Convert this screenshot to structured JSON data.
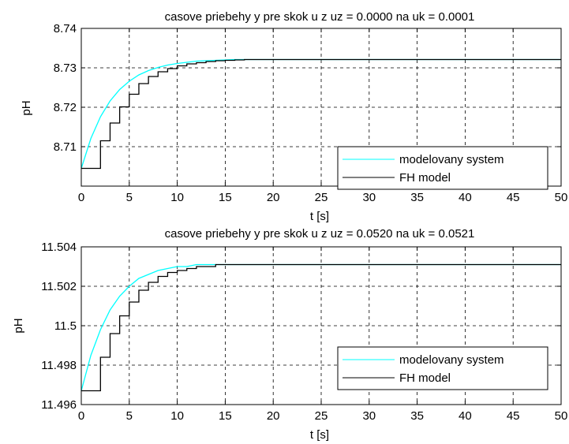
{
  "chart_data": [
    {
      "type": "line",
      "title": "casove priebehy y pre skok u z uz = 0.0000 na uk = 0.0001",
      "xlabel": "t [s]",
      "ylabel": "pH",
      "xlim": [
        0,
        50
      ],
      "ylim": [
        8.7,
        8.74
      ],
      "xticks": [
        0,
        5,
        10,
        15,
        20,
        25,
        30,
        35,
        40,
        45,
        50
      ],
      "xtick_labels": [
        "0",
        "5",
        "10",
        "15",
        "20",
        "25",
        "30",
        "35",
        "40",
        "45",
        "50"
      ],
      "yticks": [
        8.71,
        8.72,
        8.73,
        8.74
      ],
      "ytick_labels": [
        "8.71",
        "8.72",
        "8.73",
        "8.74"
      ],
      "grid": true,
      "legend_position": "bottom-right",
      "series": [
        {
          "name": "modelovany system",
          "color": "#00ffff",
          "style": "line",
          "x": [
            0,
            1,
            2,
            3,
            4,
            5,
            6,
            7,
            8,
            9,
            10,
            11,
            12,
            13,
            14,
            15,
            16,
            18,
            20,
            22,
            25,
            30,
            35,
            40,
            45,
            50
          ],
          "y": [
            8.7045,
            8.7121,
            8.7176,
            8.7216,
            8.7245,
            8.7266,
            8.7282,
            8.7293,
            8.7301,
            8.7307,
            8.7311,
            8.7314,
            8.7317,
            8.7318,
            8.7319,
            8.732,
            8.7321,
            8.7321,
            8.7321,
            8.7321,
            8.7321,
            8.7321,
            8.7321,
            8.7321,
            8.7321,
            8.7321
          ]
        },
        {
          "name": "FH model",
          "color": "#000000",
          "style": "step",
          "x": [
            0,
            2,
            3,
            4,
            5,
            6,
            7,
            8,
            9,
            10,
            11,
            12,
            13,
            14,
            15,
            16,
            17,
            18,
            22,
            50
          ],
          "y": [
            8.7045,
            8.7115,
            8.716,
            8.7201,
            8.7233,
            8.726,
            8.7278,
            8.729,
            8.7298,
            8.7305,
            8.731,
            8.7313,
            8.7316,
            8.7318,
            8.7319,
            8.732,
            8.7321,
            8.7321,
            8.7321,
            8.7321
          ]
        }
      ]
    },
    {
      "type": "line",
      "title": "casove priebehy y pre skok u z uz = 0.0520 na uk = 0.0521",
      "xlabel": "t [s]",
      "ylabel": "pH",
      "xlim": [
        0,
        50
      ],
      "ylim": [
        11.496,
        11.504
      ],
      "xticks": [
        0,
        5,
        10,
        15,
        20,
        25,
        30,
        35,
        40,
        45,
        50
      ],
      "xtick_labels": [
        "0",
        "5",
        "10",
        "15",
        "20",
        "25",
        "30",
        "35",
        "40",
        "45",
        "50"
      ],
      "yticks": [
        11.496,
        11.498,
        11.5,
        11.502,
        11.504
      ],
      "ytick_labels": [
        "11.496",
        "11.498",
        "11.5",
        "11.502",
        "11.504"
      ],
      "grid": true,
      "legend_position": "bottom-right",
      "series": [
        {
          "name": "modelovany system",
          "color": "#00ffff",
          "style": "line",
          "x": [
            0,
            1,
            2,
            3,
            4,
            5,
            6,
            7,
            8,
            9,
            10,
            11,
            12,
            13,
            14,
            15,
            16,
            18,
            20,
            23,
            25,
            30,
            35,
            40,
            45,
            50
          ],
          "y": [
            11.4967,
            11.4985,
            11.4998,
            11.5008,
            11.5015,
            11.502,
            11.5024,
            11.5026,
            11.5028,
            11.5029,
            11.503,
            11.503,
            11.5031,
            11.5031,
            11.5031,
            11.5031,
            11.5031,
            11.5031,
            11.5031,
            11.5031,
            11.5031,
            11.5031,
            11.5031,
            11.5031,
            11.5031,
            11.5031
          ]
        },
        {
          "name": "FH model",
          "color": "#000000",
          "style": "step",
          "x": [
            0,
            2,
            3,
            4,
            5,
            6,
            7,
            8,
            9,
            10,
            11,
            12,
            13,
            14,
            15,
            16,
            17,
            18,
            23,
            50
          ],
          "y": [
            11.4967,
            11.4984,
            11.4996,
            11.5005,
            11.5012,
            11.5018,
            11.5022,
            11.5025,
            11.5027,
            11.5028,
            11.5029,
            11.503,
            11.503,
            11.5031,
            11.5031,
            11.5031,
            11.5031,
            11.5031,
            11.5031,
            11.5031
          ]
        }
      ]
    }
  ]
}
